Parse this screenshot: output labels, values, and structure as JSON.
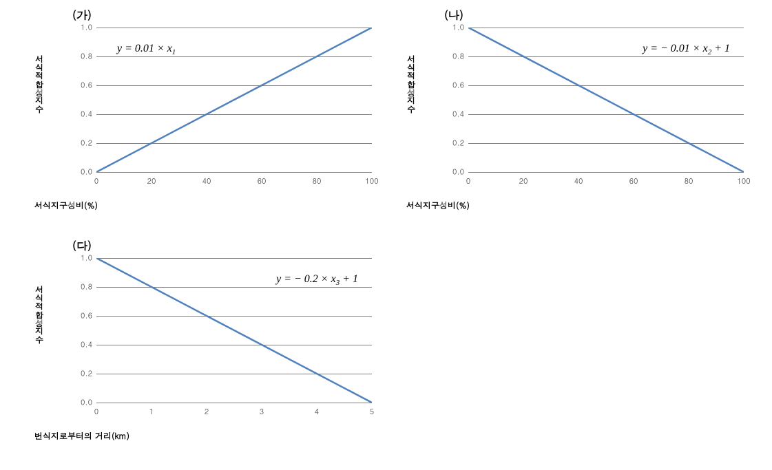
{
  "panel_ga": {
    "label": "(가)",
    "equation_html": "y = 0.01 × x<sub>1</sub>",
    "type": "line",
    "xlabel": "서식지구성비(%)",
    "ylabel": "서식적합성지수",
    "xlim": [
      0,
      100
    ],
    "ylim": [
      0,
      1.0
    ],
    "xticks": [
      0,
      20,
      40,
      60,
      80,
      100
    ],
    "yticks": [
      0.0,
      0.2,
      0.4,
      0.6,
      0.8,
      1.0
    ],
    "line": {
      "x1": 0,
      "y1": 0,
      "x2": 100,
      "y2": 1.0,
      "color": "#4f81bd",
      "width": 2.5
    },
    "grid_color": "#808080",
    "background_color": "#ffffff",
    "tick_fontsize": 11,
    "title_fontsize": 12
  },
  "panel_na": {
    "label": "(나)",
    "equation_html": "y = − 0.01 × x<sub>2</sub> + 1",
    "type": "line",
    "xlabel": "서식지구성비(%)",
    "ylabel": "서식적합성지수",
    "xlim": [
      0,
      100
    ],
    "ylim": [
      0,
      1.0
    ],
    "xticks": [
      0,
      20,
      40,
      60,
      80,
      100
    ],
    "yticks": [
      0.0,
      0.2,
      0.4,
      0.6,
      0.8,
      1.0
    ],
    "line": {
      "x1": 0,
      "y1": 1.0,
      "x2": 100,
      "y2": 0,
      "color": "#4f81bd",
      "width": 2.5
    },
    "grid_color": "#808080",
    "background_color": "#ffffff",
    "tick_fontsize": 11,
    "title_fontsize": 12
  },
  "panel_da": {
    "label": "(다)",
    "equation_html": "y = − 0.2 × x<sub>3</sub> + 1",
    "type": "line",
    "xlabel": "번식지로부터의 거리(km)",
    "ylabel": "서식적합성지수",
    "xlim": [
      0,
      5
    ],
    "ylim": [
      0,
      1.0
    ],
    "xticks": [
      0,
      1,
      2,
      3,
      4,
      5
    ],
    "yticks": [
      0.0,
      0.2,
      0.4,
      0.6,
      0.8,
      1.0
    ],
    "line": {
      "x1": 0,
      "y1": 1.0,
      "x2": 5,
      "y2": 0,
      "color": "#4f81bd",
      "width": 2.5
    },
    "grid_color": "#808080",
    "background_color": "#ffffff",
    "tick_fontsize": 11,
    "title_fontsize": 12
  },
  "yticks_fmt": [
    "0.0",
    "0.2",
    "0.4",
    "0.6",
    "0.8",
    "1.0"
  ]
}
